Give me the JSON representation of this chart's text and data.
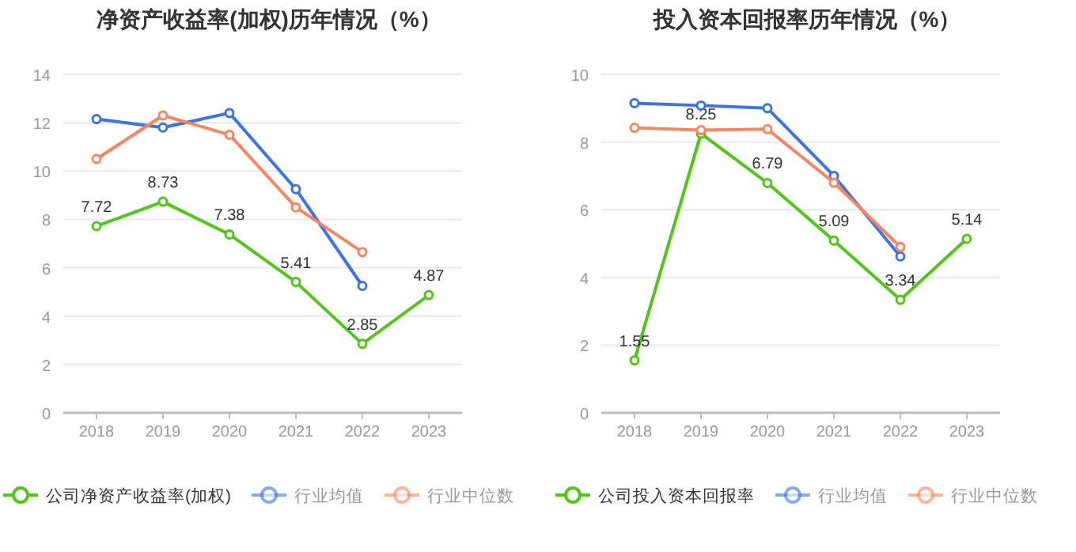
{
  "chart_data": [
    {
      "type": "line",
      "title": "净资产收益率(加权)历年情况（%）",
      "categories": [
        "2018",
        "2019",
        "2020",
        "2021",
        "2022",
        "2023"
      ],
      "ylim": [
        0,
        14
      ],
      "yticks": [
        0,
        2,
        4,
        6,
        8,
        10,
        12,
        14
      ],
      "grid": "y",
      "legend": "bottom",
      "marker": "circle",
      "series": [
        {
          "name": "公司净资产收益率(加权)",
          "color": "#52c41a",
          "values": [
            7.72,
            8.73,
            7.38,
            5.41,
            2.85,
            4.87
          ],
          "value_labels": [
            "7.72",
            "8.73",
            "7.38",
            "5.41",
            "2.85",
            "4.87"
          ]
        },
        {
          "name": "行业均值",
          "color": "#3b73e8",
          "values": [
            12.15,
            11.8,
            12.4,
            9.25,
            5.25,
            null
          ]
        },
        {
          "name": "行业中位数",
          "color": "#fa8560",
          "values": [
            10.5,
            12.3,
            11.5,
            8.5,
            6.65,
            null
          ]
        }
      ]
    },
    {
      "type": "line",
      "title": "投入资本回报率历年情况（%）",
      "categories": [
        "2018",
        "2019",
        "2020",
        "2021",
        "2022",
        "2023"
      ],
      "ylim": [
        0,
        10
      ],
      "yticks": [
        0,
        2,
        4,
        6,
        8,
        10
      ],
      "grid": "y",
      "legend": "bottom",
      "marker": "circle",
      "series": [
        {
          "name": "公司投入资本回报率",
          "color": "#52c41a",
          "values": [
            1.55,
            8.25,
            6.79,
            5.09,
            3.34,
            5.14
          ],
          "value_labels": [
            "1.55",
            "8.25",
            "6.79",
            "5.09",
            "3.34",
            "5.14"
          ]
        },
        {
          "name": "行业均值",
          "color": "#3b73e8",
          "values": [
            9.15,
            9.08,
            9.0,
            7.0,
            4.62,
            null
          ]
        },
        {
          "name": "行业中位数",
          "color": "#fa8560",
          "values": [
            8.42,
            8.35,
            8.38,
            6.8,
            4.9,
            null
          ]
        }
      ]
    }
  ]
}
